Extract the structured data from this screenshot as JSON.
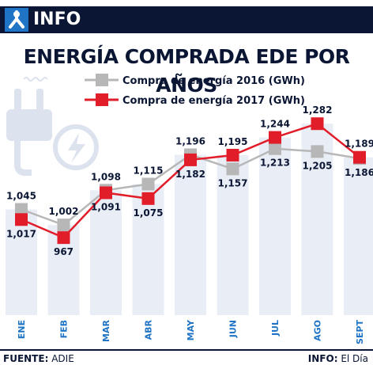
{
  "header": {
    "tag": "INFO"
  },
  "title": "ENERGÍA COMPRADA EDE POR AÑOS",
  "footer": {
    "source_label": "FUENTE:",
    "source_value": "ADIE",
    "info_label": "INFO:",
    "info_value": "El Día"
  },
  "colors": {
    "navy": "#0a1633",
    "accent_blue": "#1f74c6",
    "series_2016": "#b7b7b7",
    "series_2017": "#e21d2a",
    "bars": "#e9edf5",
    "axis_labels": "#1f74c6"
  },
  "icons": {
    "logo": "tripod-logo-icon",
    "illustration": "electric-plug-bolt-icon"
  },
  "chart_data": {
    "type": "line",
    "categories": [
      "ENE",
      "FEB",
      "MAR",
      "ABR",
      "MAY",
      "JUN",
      "JUL",
      "AGO",
      "SEPT"
    ],
    "series": [
      {
        "name": "Compra de energía 2016 (GWh)",
        "values": [
          1045,
          1002,
          1098,
          1115,
          1196,
          1157,
          1213,
          1205,
          1186
        ],
        "labels": [
          "1,045",
          "1,002",
          "1,098",
          "1,115",
          "1,196",
          "1,157",
          "1,213",
          "1,205",
          "1,186"
        ]
      },
      {
        "name": "Compra de energía 2017 (GWh)",
        "values": [
          1017,
          967,
          1091,
          1075,
          1182,
          1195,
          1244,
          1282,
          1189
        ],
        "labels": [
          "1,017",
          "967",
          "1,091",
          "1,075",
          "1,182",
          "1,195",
          "1,244",
          "1,282",
          "1,189"
        ]
      }
    ],
    "legend_position": "top",
    "ylim": [
      860,
      1300
    ]
  }
}
